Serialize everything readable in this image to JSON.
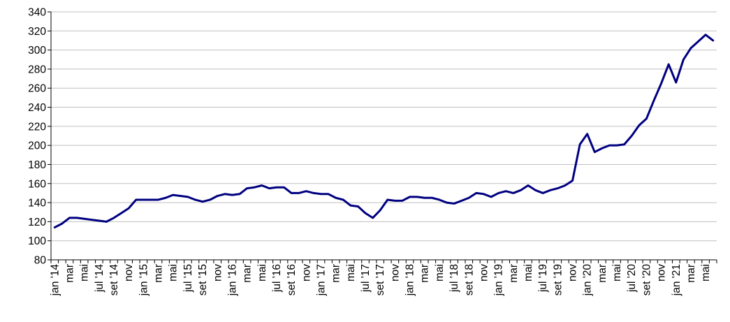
{
  "chart_data": {
    "type": "line",
    "title": "",
    "xlabel": "",
    "ylabel": "",
    "ylim": [
      80,
      340
    ],
    "yticks": [
      80,
      100,
      120,
      140,
      160,
      180,
      200,
      220,
      240,
      260,
      280,
      300,
      320,
      340
    ],
    "grid": true,
    "legend": "none",
    "line_color": "#000080",
    "x": [
      "jan '14",
      "fev '14",
      "mar '14",
      "abr '14",
      "mai '14",
      "jun '14",
      "jul '14",
      "ago '14",
      "set '14",
      "out '14",
      "nov '14",
      "dez '14",
      "jan '15",
      "fev '15",
      "mar '15",
      "abr '15",
      "mai '15",
      "jun '15",
      "jul '15",
      "ago '15",
      "set '15",
      "out '15",
      "nov '15",
      "dez '15",
      "jan '16",
      "fev '16",
      "mar '16",
      "abr '16",
      "mai '16",
      "jun '16",
      "jul '16",
      "ago '16",
      "set '16",
      "out '16",
      "nov '16",
      "dez '16",
      "jan '17",
      "fev '17",
      "mar '17",
      "abr '17",
      "mai '17",
      "jun '17",
      "jul '17",
      "ago '17",
      "set '17",
      "out '17",
      "nov '17",
      "dez '17",
      "jan '18",
      "fev '18",
      "mar '18",
      "abr '18",
      "mai '18",
      "jun '18",
      "jul '18",
      "ago '18",
      "set '18",
      "out '18",
      "nov '18",
      "dez '18",
      "jan '19",
      "fev '19",
      "mar '19",
      "abr '19",
      "mai '19",
      "jun '19",
      "jul '19",
      "ago '19",
      "set '19",
      "out '19",
      "nov '19",
      "dez '19",
      "jan '20",
      "fev '20",
      "mar '20",
      "abr '20",
      "mai '20",
      "jun '20",
      "jul '20",
      "ago '20",
      "set '20",
      "out '20",
      "nov '20",
      "dez '20",
      "jan '21",
      "fev '21",
      "mar '21",
      "abr '21",
      "mai '21",
      "jun '21"
    ],
    "x_tick_labels": [
      "jan '14",
      "mar",
      "mai",
      "jul '14",
      "set '14",
      "nov",
      "jan '15",
      "mar",
      "mai",
      "jul '15",
      "set '15",
      "nov",
      "jan '16",
      "mar",
      "mai",
      "jul '16",
      "set '16",
      "nov",
      "jan '17",
      "mar",
      "mai",
      "jul '17",
      "set '17",
      "nov",
      "jan '18",
      "mar",
      "mai",
      "jul '18",
      "set '18",
      "nov",
      "jan '19",
      "mar",
      "mai",
      "jul '19",
      "set '19",
      "nov",
      "jan '20",
      "mar",
      "mai",
      "jul '20",
      "set '20",
      "nov",
      "jan '21",
      "mar",
      "mai"
    ],
    "series": [
      {
        "values": [
          114,
          118,
          124,
          124,
          123,
          122,
          121,
          120,
          124,
          129,
          134,
          143,
          143,
          143,
          143,
          145,
          148,
          147,
          146,
          143,
          141,
          143,
          147,
          149,
          148,
          149,
          155,
          156,
          158,
          155,
          156,
          156,
          150,
          150,
          152,
          150,
          149,
          149,
          145,
          143,
          137,
          136,
          129,
          124,
          132,
          143,
          142,
          142,
          146,
          146,
          145,
          145,
          143,
          140,
          139,
          142,
          145,
          150,
          149,
          146,
          150,
          152,
          150,
          153,
          158,
          153,
          150,
          153,
          155,
          158,
          163,
          201,
          212,
          193,
          197,
          200,
          200,
          201,
          210,
          221,
          228,
          247,
          265,
          285,
          266,
          290,
          302,
          309,
          316,
          310
        ]
      }
    ]
  }
}
